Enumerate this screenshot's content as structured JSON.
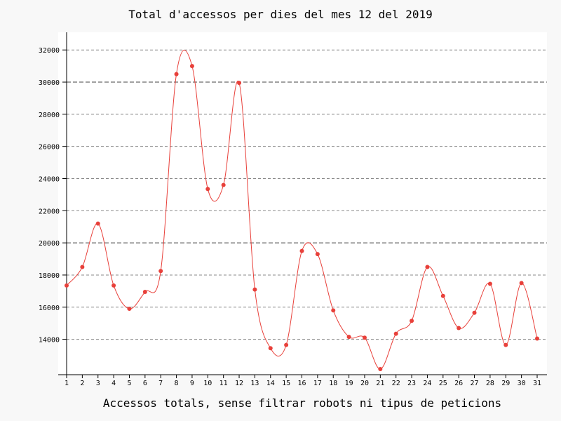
{
  "chart_data": {
    "type": "line",
    "title": "Total d'accessos per dies del mes 12 del 2019",
    "xlabel": "Accessos totals, sense filtrar robots ni tipus de peticions",
    "ylabel": "",
    "x": [
      1,
      2,
      3,
      4,
      5,
      6,
      7,
      8,
      9,
      10,
      11,
      12,
      13,
      14,
      15,
      16,
      17,
      18,
      19,
      20,
      21,
      22,
      23,
      24,
      25,
      26,
      27,
      28,
      29,
      30,
      31
    ],
    "x_tick_labels": [
      "1",
      "2",
      "3",
      "4",
      "5",
      "6",
      "7",
      "8",
      "9",
      "10",
      "11",
      "12",
      "13",
      "14",
      "15",
      "16",
      "17",
      "18",
      "19",
      "20",
      "21",
      "22",
      "23",
      "24",
      "25",
      "26",
      "27",
      "28",
      "29",
      "30",
      "31"
    ],
    "series": [
      {
        "values": [
          17350,
          18500,
          21200,
          17350,
          15900,
          16950,
          18250,
          30500,
          31000,
          23350,
          23600,
          29950,
          17100,
          13450,
          13650,
          19500,
          19300,
          15800,
          14150,
          14100,
          12150,
          14350,
          15150,
          18500,
          16700,
          14700,
          15650,
          17450,
          13650,
          17500,
          14050
        ],
        "color": "#e8403a"
      }
    ],
    "ylim": [
      11800,
      33100
    ],
    "y_ticks": [
      14000,
      16000,
      18000,
      20000,
      22000,
      24000,
      26000,
      28000,
      30000,
      32000
    ],
    "y_tick_labels": [
      "14000",
      "16000",
      "18000",
      "20000",
      "22000",
      "24000",
      "26000",
      "28000",
      "30000",
      "32000"
    ],
    "grid": true,
    "legend": "none",
    "background": "#ffffff",
    "page_background": "#f8f8f8"
  }
}
